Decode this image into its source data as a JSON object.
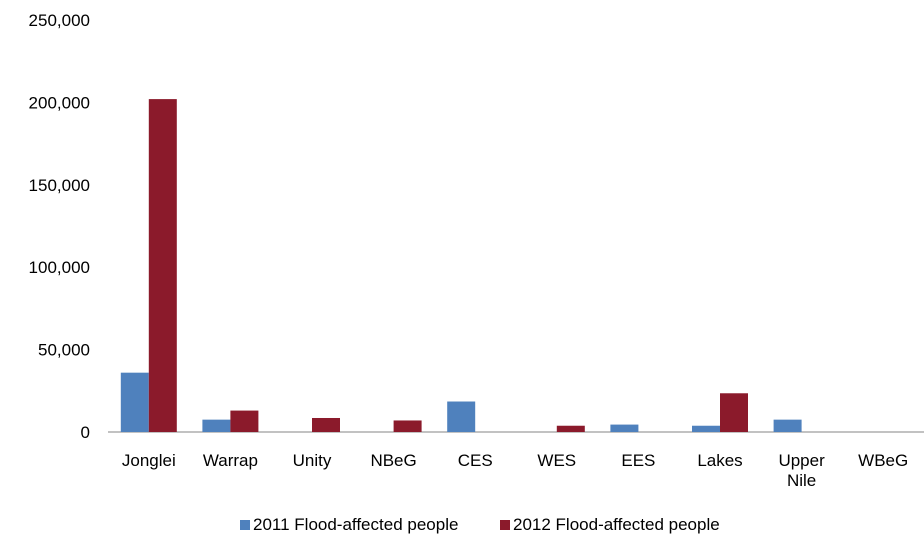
{
  "chart_data": {
    "type": "bar",
    "categories": [
      "Jonglei",
      "Warrap",
      "Unity",
      "NBeG",
      "CES",
      "WES",
      "EES",
      "Lakes",
      "Upper Nile",
      "WBeG"
    ],
    "category_lines": [
      [
        "Jonglei"
      ],
      [
        "Warrap"
      ],
      [
        "Unity"
      ],
      [
        "NBeG"
      ],
      [
        "CES"
      ],
      [
        "WES"
      ],
      [
        "EES"
      ],
      [
        "Lakes"
      ],
      [
        "Upper",
        "Nile"
      ],
      [
        "WBeG"
      ]
    ],
    "series": [
      {
        "name": "2011 Flood-affected people",
        "color": "#4F81BD",
        "values": [
          36000,
          7500,
          0,
          0,
          18500,
          0,
          4500,
          3800,
          7500,
          0
        ]
      },
      {
        "name": "2012 Flood-affected people",
        "color": "#8B1A2B",
        "values": [
          202000,
          13000,
          8500,
          7000,
          0,
          3800,
          0,
          23500,
          0,
          0
        ]
      }
    ],
    "y_ticks": [
      "0",
      "50,000",
      "100,000",
      "150,000",
      "200,000",
      "250,000"
    ],
    "ylim": [
      0,
      250000
    ],
    "grid": false,
    "legend_position": "bottom",
    "title": "",
    "xlabel": "",
    "ylabel": ""
  }
}
